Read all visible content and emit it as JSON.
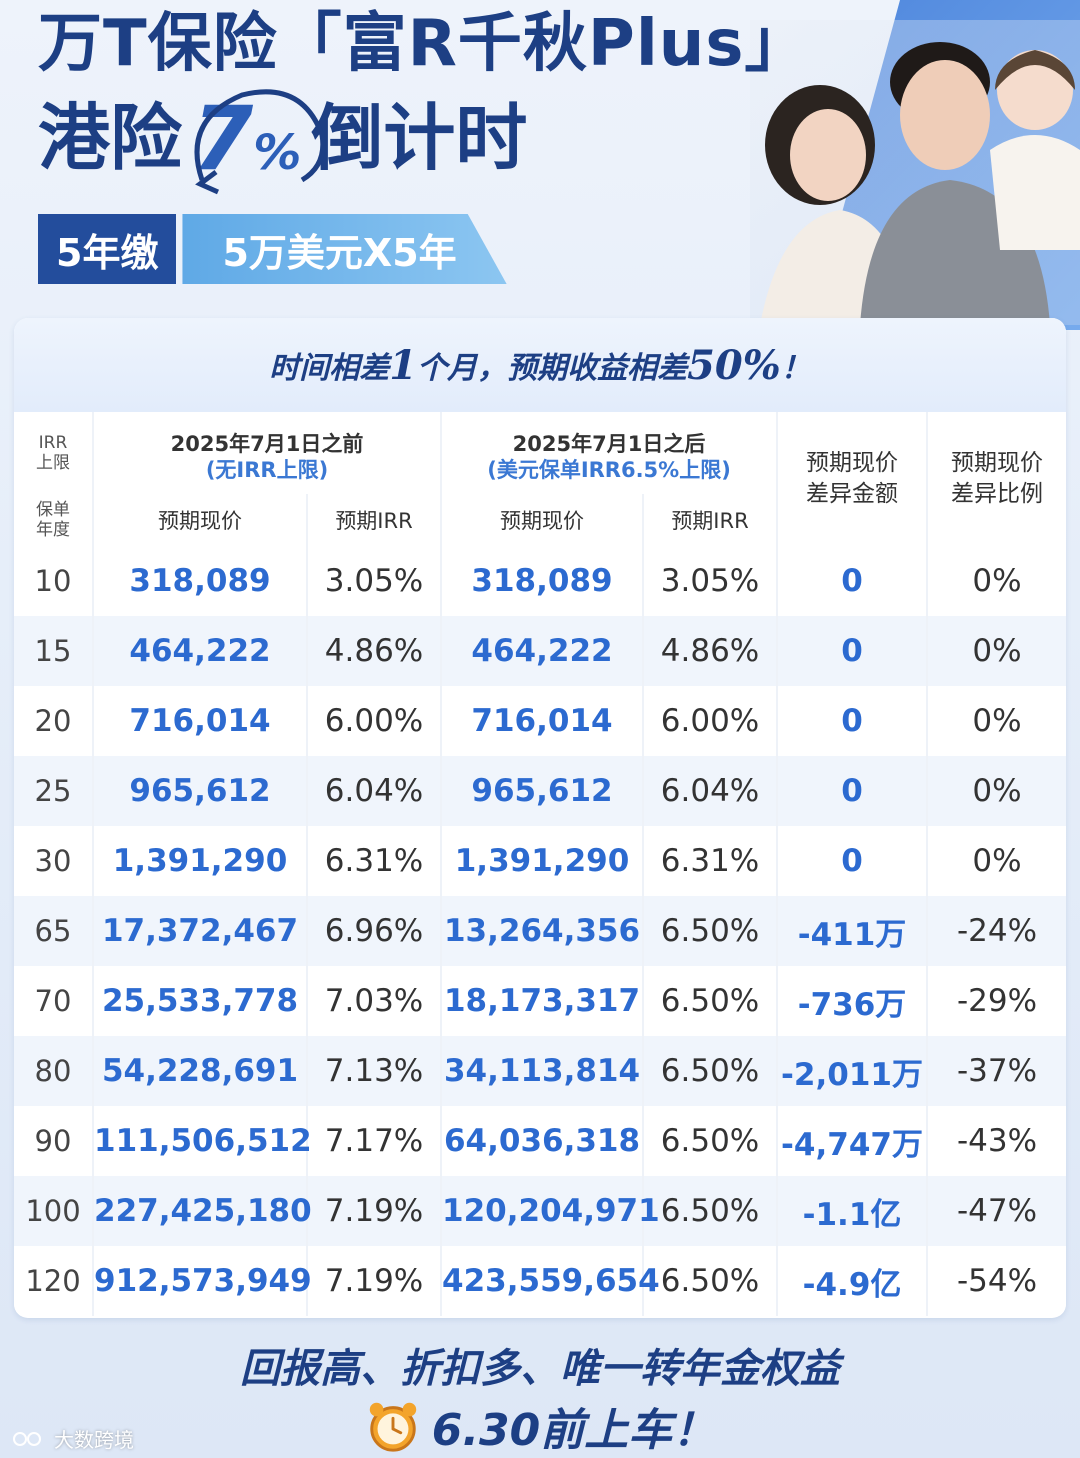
{
  "headline": {
    "line1": "万T保险「富R千秋Plus」",
    "line2_prefix": "港险",
    "line2_percent_num": "7",
    "line2_percent_sign": "%",
    "line2_suffix": "倒计时"
  },
  "tags": {
    "term": "5年缴",
    "premium": "5万美元X5年"
  },
  "banner": {
    "part1": "时间相差",
    "num1": "1",
    "part2": "个月，预期收益相差",
    "num2": "50%",
    "part3": "！"
  },
  "table": {
    "corner_top": "IRR\n上限",
    "corner_bottom": "保单\n年度",
    "group_before": {
      "title": "2025年7月1日之前",
      "note": "(无IRR上限)"
    },
    "group_after": {
      "title": "2025年7月1日之后",
      "note": "(美元保单IRR6.5%上限)"
    },
    "col_cv": "预期现价",
    "col_irr": "预期IRR",
    "col_diff_amount": "预期现价\n差异金额",
    "col_diff_ratio": "预期现价\n差异比例",
    "rows": [
      {
        "year": "10",
        "cv_before": "318,089",
        "irr_before": "3.05%",
        "cv_after": "318,089",
        "irr_after": "3.05%",
        "diff": "0",
        "ratio": "0%"
      },
      {
        "year": "15",
        "cv_before": "464,222",
        "irr_before": "4.86%",
        "cv_after": "464,222",
        "irr_after": "4.86%",
        "diff": "0",
        "ratio": "0%"
      },
      {
        "year": "20",
        "cv_before": "716,014",
        "irr_before": "6.00%",
        "cv_after": "716,014",
        "irr_after": "6.00%",
        "diff": "0",
        "ratio": "0%"
      },
      {
        "year": "25",
        "cv_before": "965,612",
        "irr_before": "6.04%",
        "cv_after": "965,612",
        "irr_after": "6.04%",
        "diff": "0",
        "ratio": "0%"
      },
      {
        "year": "30",
        "cv_before": "1,391,290",
        "irr_before": "6.31%",
        "cv_after": "1,391,290",
        "irr_after": "6.31%",
        "diff": "0",
        "ratio": "0%"
      },
      {
        "year": "65",
        "cv_before": "17,372,467",
        "irr_before": "6.96%",
        "cv_after": "13,264,356",
        "irr_after": "6.50%",
        "diff": "-411万",
        "ratio": "-24%"
      },
      {
        "year": "70",
        "cv_before": "25,533,778",
        "irr_before": "7.03%",
        "cv_after": "18,173,317",
        "irr_after": "6.50%",
        "diff": "-736万",
        "ratio": "-29%"
      },
      {
        "year": "80",
        "cv_before": "54,228,691",
        "irr_before": "7.13%",
        "cv_after": "34,113,814",
        "irr_after": "6.50%",
        "diff": "-2,011万",
        "ratio": "-37%"
      },
      {
        "year": "90",
        "cv_before": "111,506,512",
        "irr_before": "7.17%",
        "cv_after": "64,036,318",
        "irr_after": "6.50%",
        "diff": "-4,747万",
        "ratio": "-43%"
      },
      {
        "year": "100",
        "cv_before": "227,425,180",
        "irr_before": "7.19%",
        "cv_after": "120,204,971",
        "irr_after": "6.50%",
        "diff": "-1.1亿",
        "ratio": "-47%"
      },
      {
        "year": "120",
        "cv_before": "912,573,949",
        "irr_before": "7.19%",
        "cv_after": "423,559,654",
        "irr_after": "6.50%",
        "diff": "-4.9亿",
        "ratio": "-54%"
      }
    ]
  },
  "footer": {
    "line1": "回报高、折扣多、唯一转年金权益",
    "line2": "6.30前上车！"
  },
  "watermark": "大数跨境",
  "colors": {
    "navy": "#1d3f84",
    "accent_blue": "#2c6ad0",
    "row_alt": "#f0f5fc"
  }
}
